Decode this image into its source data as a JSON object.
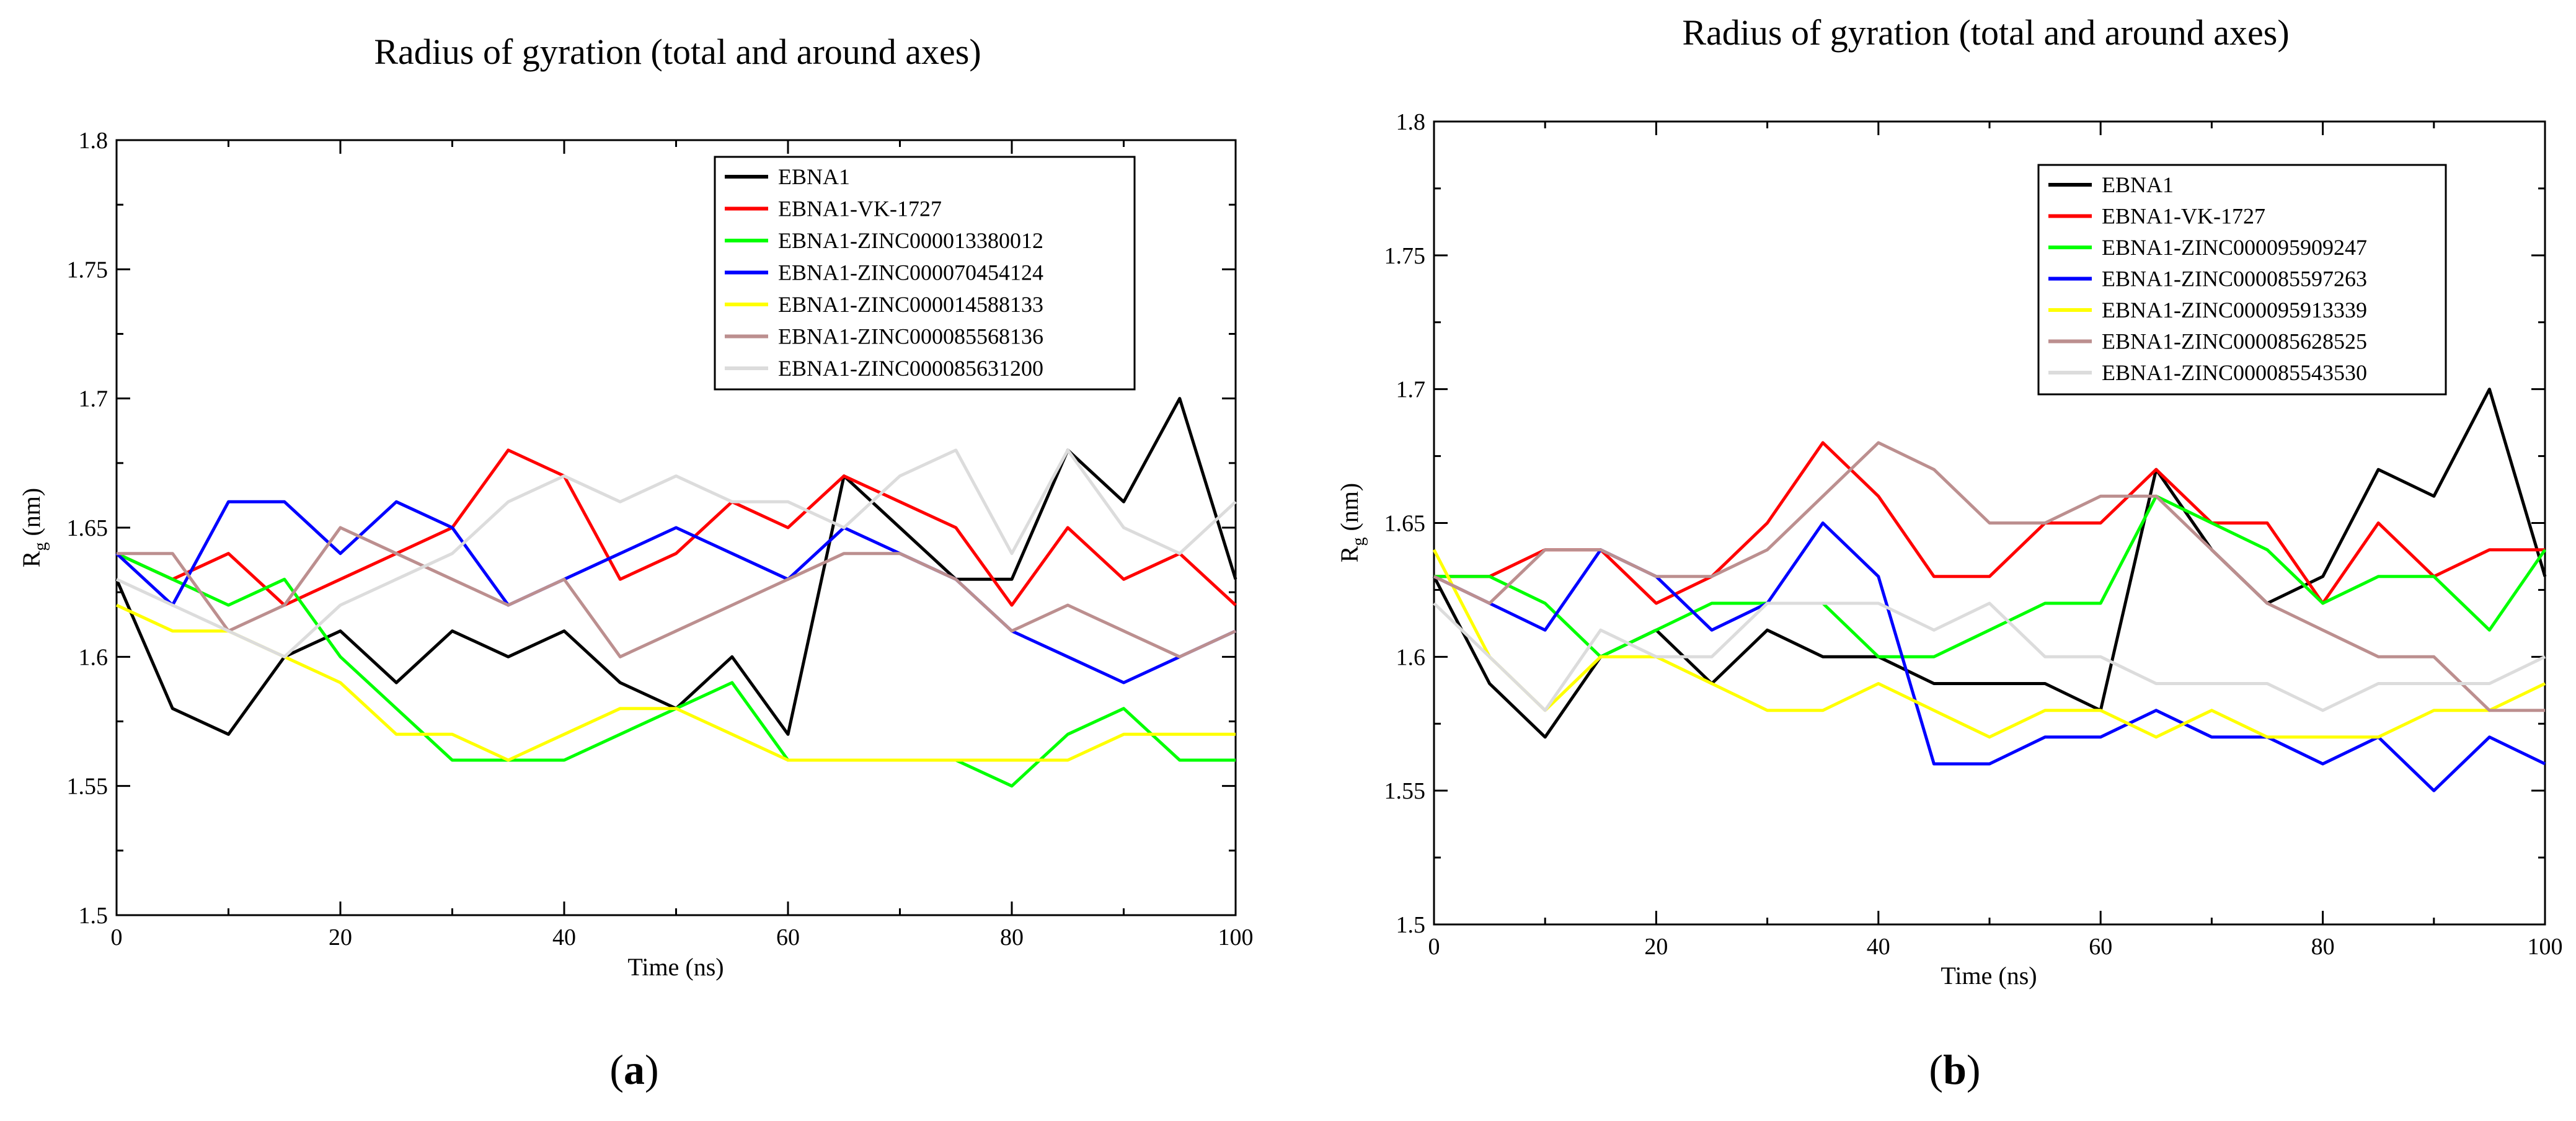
{
  "chart_data": [
    {
      "type": "line",
      "caption_letter": "a",
      "title": "Radius of gyration (total and around axes)",
      "xlabel": "Time (ns)",
      "ylabel_main": "R",
      "ylabel_sub": "g",
      "ylabel_unit": " (nm)",
      "xlim": [
        0,
        100
      ],
      "ylim": [
        1.5,
        1.8
      ],
      "xticks": [
        0,
        20,
        40,
        60,
        80,
        100
      ],
      "yticks": [
        "1.5",
        "1.55",
        "1.6",
        "1.65",
        "1.7",
        "1.75",
        "1.8"
      ],
      "legend_position": "top-right",
      "x": [
        0,
        5,
        10,
        15,
        20,
        25,
        30,
        35,
        40,
        45,
        50,
        55,
        60,
        65,
        70,
        75,
        80,
        85,
        90,
        95,
        100
      ],
      "series": [
        {
          "name": "EBNA1",
          "color": "#000000",
          "values": [
            1.63,
            1.58,
            1.57,
            1.6,
            1.61,
            1.59,
            1.61,
            1.6,
            1.61,
            1.59,
            1.58,
            1.6,
            1.57,
            1.67,
            1.65,
            1.63,
            1.63,
            1.68,
            1.66,
            1.7,
            1.63
          ]
        },
        {
          "name": "EBNA1-VK-1727",
          "color": "#ff0000",
          "values": [
            1.64,
            1.63,
            1.64,
            1.62,
            1.63,
            1.64,
            1.65,
            1.68,
            1.67,
            1.63,
            1.64,
            1.66,
            1.65,
            1.67,
            1.66,
            1.65,
            1.62,
            1.65,
            1.63,
            1.64,
            1.62
          ]
        },
        {
          "name": "EBNA1-ZINC000013380012",
          "color": "#00ff00",
          "values": [
            1.64,
            1.63,
            1.62,
            1.63,
            1.6,
            1.58,
            1.56,
            1.56,
            1.56,
            1.57,
            1.58,
            1.59,
            1.56,
            1.56,
            1.56,
            1.56,
            1.55,
            1.57,
            1.58,
            1.56,
            1.56
          ]
        },
        {
          "name": "EBNA1-ZINC000070454124",
          "color": "#0000ff",
          "values": [
            1.64,
            1.62,
            1.66,
            1.66,
            1.64,
            1.66,
            1.65,
            1.62,
            1.63,
            1.64,
            1.65,
            1.64,
            1.63,
            1.65,
            1.64,
            1.63,
            1.61,
            1.6,
            1.59,
            1.6,
            1.61
          ]
        },
        {
          "name": "EBNA1-ZINC000014588133",
          "color": "#ffff00",
          "values": [
            1.62,
            1.61,
            1.61,
            1.6,
            1.59,
            1.57,
            1.57,
            1.56,
            1.57,
            1.58,
            1.58,
            1.57,
            1.56,
            1.56,
            1.56,
            1.56,
            1.56,
            1.56,
            1.57,
            1.57,
            1.57
          ]
        },
        {
          "name": "EBNA1-ZINC000085568136",
          "color": "#bc8f8f",
          "values": [
            1.64,
            1.64,
            1.61,
            1.62,
            1.65,
            1.64,
            1.63,
            1.62,
            1.63,
            1.6,
            1.61,
            1.62,
            1.63,
            1.64,
            1.64,
            1.63,
            1.61,
            1.62,
            1.61,
            1.6,
            1.61
          ]
        },
        {
          "name": "EBNA1-ZINC000085631200",
          "color": "#dcdcdc",
          "values": [
            1.63,
            1.62,
            1.61,
            1.6,
            1.62,
            1.63,
            1.64,
            1.66,
            1.67,
            1.66,
            1.67,
            1.66,
            1.66,
            1.65,
            1.67,
            1.68,
            1.64,
            1.68,
            1.65,
            1.64,
            1.66
          ]
        }
      ]
    },
    {
      "type": "line",
      "caption_letter": "b",
      "title": "Radius of gyration (total and around axes)",
      "xlabel": "Time (ns)",
      "ylabel_main": "R",
      "ylabel_sub": "g",
      "ylabel_unit": " (nm)",
      "xlim": [
        0,
        100
      ],
      "ylim": [
        1.5,
        1.8
      ],
      "xticks": [
        0,
        20,
        40,
        60,
        80,
        100
      ],
      "yticks": [
        "1.5",
        "1.55",
        "1.6",
        "1.65",
        "1.7",
        "1.75",
        "1.8"
      ],
      "legend_position": "top-right",
      "x": [
        0,
        5,
        10,
        15,
        20,
        25,
        30,
        35,
        40,
        45,
        50,
        55,
        60,
        65,
        70,
        75,
        80,
        85,
        90,
        95,
        100
      ],
      "series": [
        {
          "name": "EBNA1",
          "color": "#000000",
          "values": [
            1.63,
            1.59,
            1.57,
            1.6,
            1.61,
            1.59,
            1.61,
            1.6,
            1.6,
            1.59,
            1.59,
            1.59,
            1.58,
            1.67,
            1.64,
            1.62,
            1.63,
            1.67,
            1.66,
            1.7,
            1.63
          ]
        },
        {
          "name": "EBNA1-VK-1727",
          "color": "#ff0000",
          "values": [
            1.63,
            1.63,
            1.64,
            1.64,
            1.62,
            1.63,
            1.65,
            1.68,
            1.66,
            1.63,
            1.63,
            1.65,
            1.65,
            1.67,
            1.65,
            1.65,
            1.62,
            1.65,
            1.63,
            1.64,
            1.64
          ]
        },
        {
          "name": "EBNA1-ZINC000095909247",
          "color": "#00ff00",
          "values": [
            1.63,
            1.63,
            1.62,
            1.6,
            1.61,
            1.62,
            1.62,
            1.62,
            1.6,
            1.6,
            1.61,
            1.62,
            1.62,
            1.66,
            1.65,
            1.64,
            1.62,
            1.63,
            1.63,
            1.61,
            1.64
          ]
        },
        {
          "name": "EBNA1-ZINC000085597263",
          "color": "#0000ff",
          "values": [
            1.63,
            1.62,
            1.61,
            1.64,
            1.63,
            1.61,
            1.62,
            1.65,
            1.63,
            1.56,
            1.56,
            1.57,
            1.57,
            1.58,
            1.57,
            1.57,
            1.56,
            1.57,
            1.55,
            1.57,
            1.56
          ]
        },
        {
          "name": "EBNA1-ZINC000095913339",
          "color": "#ffff00",
          "values": [
            1.64,
            1.6,
            1.58,
            1.6,
            1.6,
            1.59,
            1.58,
            1.58,
            1.59,
            1.58,
            1.57,
            1.58,
            1.58,
            1.57,
            1.58,
            1.57,
            1.57,
            1.57,
            1.58,
            1.58,
            1.59
          ]
        },
        {
          "name": "EBNA1-ZINC000085628525",
          "color": "#bc8f8f",
          "values": [
            1.63,
            1.62,
            1.64,
            1.64,
            1.63,
            1.63,
            1.64,
            1.66,
            1.68,
            1.67,
            1.65,
            1.65,
            1.66,
            1.66,
            1.64,
            1.62,
            1.61,
            1.6,
            1.6,
            1.58,
            1.58
          ]
        },
        {
          "name": "EBNA1-ZINC000085543530",
          "color": "#dcdcdc",
          "values": [
            1.62,
            1.6,
            1.58,
            1.61,
            1.6,
            1.6,
            1.62,
            1.62,
            1.62,
            1.61,
            1.62,
            1.6,
            1.6,
            1.59,
            1.59,
            1.59,
            1.58,
            1.59,
            1.59,
            1.59,
            1.6
          ]
        }
      ]
    }
  ]
}
